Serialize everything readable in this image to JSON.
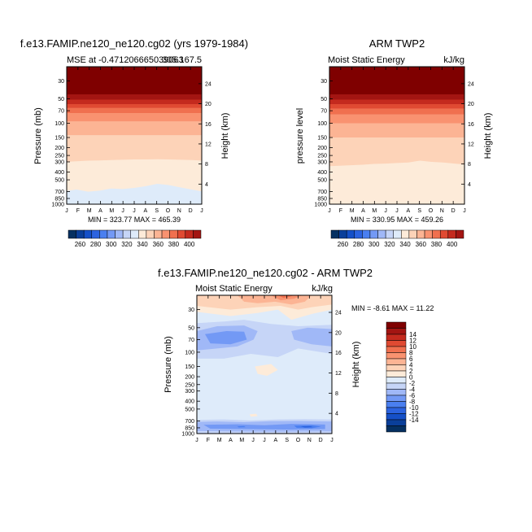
{
  "colors": {
    "levels": [
      "#053061",
      "#0a3f9a",
      "#1550c8",
      "#2c63e0",
      "#4a7ff0",
      "#7399f5",
      "#a0b8f7",
      "#c6d5f7",
      "#deebfa",
      "#fdebd9",
      "#fdd3b8",
      "#fcb494",
      "#f99270",
      "#f0704f",
      "#e04a32",
      "#c42a1e",
      "#a31512",
      "#7f0000"
    ]
  },
  "panels": {
    "p1": {
      "title": "f.e13.FAMIP.ne120_ne120.cg02 (yrs 1979-1984)",
      "left_label": "MSE at -0.471206665039063",
      "right_label": "305.167.5",
      "ylabel_left": "Pressure (mb)",
      "ylabel_right": "Height (km)",
      "stats": "MIN = 323.77 MAX = 465.39"
    },
    "p2": {
      "title": "ARM TWP2",
      "left_label": "Moist Static Energy",
      "right_label": "kJ/kg",
      "ylabel_left": "pressure level",
      "ylabel_right": "Height (km)",
      "stats": "MIN = 330.95 MAX = 459.26"
    },
    "p3": {
      "title": "f.e13.FAMIP.ne120_ne120.cg02 - ARM TWP2",
      "left_label": "Moist Static Energy",
      "right_label": "kJ/kg",
      "ylabel_left": "Pressure (mb)",
      "ylabel_right": "Height (km)",
      "stats": "MIN =   -8.61 MAX =  11.22"
    }
  },
  "chart_data": [
    {
      "type": "heatmap",
      "title": "f.e13.FAMIP.ne120_ne120.cg02 (yrs 1979-1984)",
      "variable": "MSE",
      "units": "kJ/kg",
      "x_ticks": [
        "J",
        "F",
        "M",
        "A",
        "M",
        "J",
        "J",
        "A",
        "S",
        "O",
        "N",
        "D",
        "J"
      ],
      "y_ticks": [
        "30",
        "50",
        "70",
        "100",
        "150",
        "200",
        "250",
        "300",
        "400",
        "500",
        "700",
        "850",
        "1000"
      ],
      "y2_ticks": [
        "24",
        "20",
        "16",
        "12",
        "8",
        "4"
      ],
      "ylim": [
        1000,
        20
      ],
      "log_y": true,
      "min": 323.77,
      "max": 465.39,
      "contour_boundaries_mb": {
        "400": 44,
        "390": 51,
        "380": 58,
        "370": 65,
        "360": 75,
        "350": 95,
        "340": 140,
        "330": [
          300,
          295,
          290,
          288,
          285,
          282,
          280,
          280,
          278,
          280,
          282,
          285,
          290
        ],
        "320": [
          690,
          660,
          700,
          680,
          640,
          650,
          630,
          600,
          560,
          580,
          620,
          660,
          700
        ]
      },
      "colorbar": {
        "labels": [
          "260",
          "280",
          "300",
          "320",
          "340",
          "360",
          "380",
          "400"
        ]
      }
    },
    {
      "type": "heatmap",
      "title": "ARM TWP2",
      "variable": "Moist Static Energy",
      "units": "kJ/kg",
      "x_ticks": [
        "J",
        "F",
        "M",
        "A",
        "M",
        "J",
        "J",
        "A",
        "S",
        "O",
        "N",
        "D",
        "J"
      ],
      "y_ticks": [
        "30",
        "50",
        "70",
        "100",
        "150",
        "200",
        "250",
        "300",
        "400",
        "500",
        "700",
        "850",
        "1000"
      ],
      "y2_ticks": [
        "24",
        "20",
        "16",
        "12",
        "8",
        "4"
      ],
      "ylim": [
        1000,
        20
      ],
      "log_y": true,
      "min": 330.95,
      "max": 459.26,
      "contour_boundaries_mb": {
        "400": 44,
        "390": 51,
        "380": 58,
        "370": 66,
        "360": 78,
        "350": 100,
        "340": 150,
        "330": [
          340,
          335,
          330,
          325,
          318,
          315,
          310,
          305,
          290,
          300,
          305,
          315,
          325
        ]
      },
      "colorbar": {
        "labels": [
          "260",
          "280",
          "300",
          "320",
          "340",
          "360",
          "380",
          "400"
        ]
      }
    },
    {
      "type": "heatmap",
      "title": "f.e13.FAMIP.ne120_ne120.cg02 - ARM TWP2",
      "variable": "Moist Static Energy difference",
      "units": "kJ/kg",
      "x_ticks": [
        "J",
        "F",
        "M",
        "A",
        "M",
        "J",
        "J",
        "A",
        "S",
        "O",
        "N",
        "D",
        "J"
      ],
      "y_ticks": [
        "30",
        "50",
        "70",
        "100",
        "150",
        "200",
        "250",
        "300",
        "400",
        "500",
        "700",
        "850",
        "1000"
      ],
      "y2_ticks": [
        "24",
        "20",
        "16",
        "12",
        "8",
        "4"
      ],
      "ylim": [
        1000,
        20
      ],
      "log_y": true,
      "min": -8.61,
      "max": 11.22,
      "colorbar": {
        "labels": [
          "14",
          "12",
          "10",
          "8",
          "6",
          "4",
          "2",
          "0",
          "-2",
          "-4",
          "-6",
          "-8",
          "-10",
          "-12",
          "-14"
        ]
      }
    }
  ]
}
